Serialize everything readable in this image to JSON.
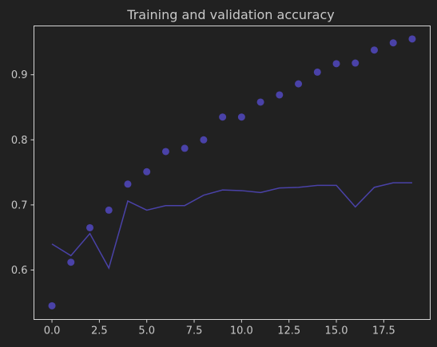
{
  "chart_data": {
    "type": "line",
    "title": "Training and validation accuracy",
    "xlabel": "",
    "ylabel": "",
    "xlim": [
      -0.95,
      19.95
    ],
    "ylim": [
      0.524,
      0.975
    ],
    "x_ticks": [
      0.0,
      2.5,
      5.0,
      7.5,
      10.0,
      12.5,
      15.0,
      17.5
    ],
    "x_tick_labels": [
      "0.0",
      "2.5",
      "5.0",
      "7.5",
      "10.0",
      "12.5",
      "15.0",
      "17.5"
    ],
    "y_ticks": [
      0.6,
      0.7,
      0.8,
      0.9
    ],
    "y_tick_labels": [
      "0.6",
      "0.7",
      "0.8",
      "0.9"
    ],
    "grid": false,
    "legend": "none",
    "colors": {
      "background": "#212121",
      "axes": "#d4d4d4",
      "text": "#c8c8c8",
      "series": "#4a42a8"
    },
    "series": [
      {
        "style": "scatter",
        "x": [
          0,
          1,
          2,
          3,
          4,
          5,
          6,
          7,
          8,
          9,
          10,
          11,
          12,
          13,
          14,
          15,
          16,
          17,
          18,
          19
        ],
        "values": [
          0.545,
          0.612,
          0.665,
          0.692,
          0.732,
          0.751,
          0.782,
          0.787,
          0.8,
          0.835,
          0.835,
          0.858,
          0.869,
          0.886,
          0.904,
          0.917,
          0.918,
          0.938,
          0.949,
          0.955
        ]
      },
      {
        "style": "line",
        "x": [
          0,
          1,
          2,
          3,
          4,
          5,
          6,
          7,
          8,
          9,
          10,
          11,
          12,
          13,
          14,
          15,
          16,
          17,
          18,
          19
        ],
        "values": [
          0.64,
          0.622,
          0.656,
          0.603,
          0.706,
          0.692,
          0.699,
          0.699,
          0.715,
          0.723,
          0.722,
          0.719,
          0.726,
          0.727,
          0.73,
          0.73,
          0.697,
          0.727,
          0.734,
          0.734
        ]
      }
    ]
  }
}
